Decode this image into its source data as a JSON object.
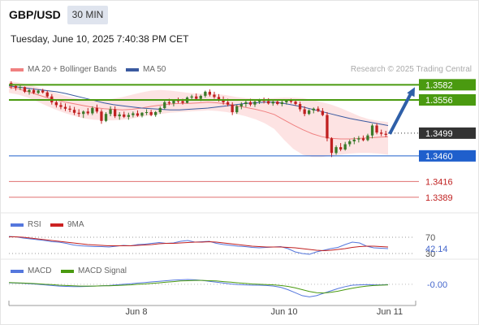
{
  "header": {
    "symbol": "GBP/USD",
    "timeframe": "30 MIN",
    "datetime": "Tuesday, June 10, 2025 7:40:38 PM CET",
    "credit": "Research © 2025 Trading Central"
  },
  "legends": {
    "ma20": "MA 20 + Bollinger Bands",
    "ma50": "MA 50",
    "rsi": "RSI",
    "rsi_ma": "9MA",
    "macd": "MACD",
    "macd_signal": "MACD Signal"
  },
  "colors": {
    "bull": "#3a7a2a",
    "bear": "#c02020",
    "ma20": "#f08080",
    "ma50": "#3a5aa0",
    "bands": "#fde0e0",
    "resistance": "#4a9a10",
    "support": "#1f5fcc",
    "target": "#e07070",
    "price": "#333333",
    "rsi": "#5577dd",
    "macd": "#5577dd",
    "signal": "#4a9a10"
  },
  "chart_data": [
    {
      "type": "candlestick",
      "ylim": [
        1.3365,
        1.3595
      ],
      "x_ticks": [
        "Jun 8",
        "Jun 10",
        "Jun 11"
      ],
      "candles": [
        [
          1.3585,
          1.3588,
          1.3575,
          1.358
        ],
        [
          1.358,
          1.3583,
          1.3572,
          1.3577
        ],
        [
          1.3577,
          1.3581,
          1.3573,
          1.3578
        ],
        [
          1.3578,
          1.3579,
          1.3568,
          1.357
        ],
        [
          1.357,
          1.3575,
          1.3565,
          1.3573
        ],
        [
          1.3573,
          1.3576,
          1.3566,
          1.3568
        ],
        [
          1.3568,
          1.3574,
          1.3566,
          1.3572
        ],
        [
          1.3572,
          1.3575,
          1.3567,
          1.3569
        ],
        [
          1.3569,
          1.3572,
          1.356,
          1.3562
        ],
        [
          1.3562,
          1.3566,
          1.3548,
          1.3552
        ],
        [
          1.3552,
          1.3556,
          1.3543,
          1.3547
        ],
        [
          1.3547,
          1.3552,
          1.354,
          1.3544
        ],
        [
          1.3544,
          1.355,
          1.3537,
          1.3541
        ],
        [
          1.3541,
          1.3546,
          1.3535,
          1.3539
        ],
        [
          1.3539,
          1.3544,
          1.353,
          1.3534
        ],
        [
          1.3534,
          1.354,
          1.3527,
          1.3532
        ],
        [
          1.3532,
          1.3538,
          1.3525,
          1.3536
        ],
        [
          1.3536,
          1.3542,
          1.353,
          1.3533
        ],
        [
          1.3533,
          1.3545,
          1.353,
          1.3542
        ],
        [
          1.3542,
          1.3548,
          1.3533,
          1.3536
        ],
        [
          1.3536,
          1.354,
          1.3515,
          1.352
        ],
        [
          1.352,
          1.3535,
          1.3518,
          1.3532
        ],
        [
          1.3532,
          1.3545,
          1.3528,
          1.354
        ],
        [
          1.354,
          1.3545,
          1.3525,
          1.3528
        ],
        [
          1.3528,
          1.3535,
          1.3522,
          1.3531
        ],
        [
          1.3531,
          1.3536,
          1.3525,
          1.3527
        ],
        [
          1.3527,
          1.3534,
          1.3522,
          1.353
        ],
        [
          1.353,
          1.3536,
          1.3526,
          1.3533
        ],
        [
          1.3533,
          1.3538,
          1.3527,
          1.3529
        ],
        [
          1.3529,
          1.3535,
          1.3526,
          1.3534
        ],
        [
          1.3534,
          1.354,
          1.353,
          1.3535
        ],
        [
          1.3535,
          1.3539,
          1.3528,
          1.353
        ],
        [
          1.353,
          1.3537,
          1.3527,
          1.3535
        ],
        [
          1.3535,
          1.3545,
          1.3532,
          1.3542
        ],
        [
          1.3542,
          1.3555,
          1.354,
          1.3552
        ],
        [
          1.3552,
          1.3558,
          1.3547,
          1.355
        ],
        [
          1.355,
          1.3557,
          1.3545,
          1.3555
        ],
        [
          1.3555,
          1.356,
          1.355,
          1.3554
        ],
        [
          1.3554,
          1.3558,
          1.3548,
          1.3551
        ],
        [
          1.3551,
          1.3562,
          1.355,
          1.356
        ],
        [
          1.356,
          1.3565,
          1.3555,
          1.3562
        ],
        [
          1.3562,
          1.3567,
          1.3555,
          1.3558
        ],
        [
          1.3558,
          1.3565,
          1.3554,
          1.3563
        ],
        [
          1.3563,
          1.3572,
          1.356,
          1.357
        ],
        [
          1.357,
          1.3574,
          1.3562,
          1.3565
        ],
        [
          1.3565,
          1.357,
          1.3558,
          1.3561
        ],
        [
          1.3561,
          1.3566,
          1.3553,
          1.3556
        ],
        [
          1.3556,
          1.3562,
          1.3548,
          1.3552
        ],
        [
          1.3552,
          1.3558,
          1.3545,
          1.3548
        ],
        [
          1.3548,
          1.3552,
          1.353,
          1.3535
        ],
        [
          1.3535,
          1.3548,
          1.3532,
          1.3545
        ],
        [
          1.3545,
          1.3552,
          1.354,
          1.3549
        ],
        [
          1.3549,
          1.3556,
          1.3544,
          1.3552
        ],
        [
          1.3552,
          1.3558,
          1.3545,
          1.3548
        ],
        [
          1.3548,
          1.3556,
          1.3544,
          1.3553
        ],
        [
          1.3553,
          1.3558,
          1.3549,
          1.3556
        ],
        [
          1.3556,
          1.356,
          1.355,
          1.3554
        ],
        [
          1.3554,
          1.3559,
          1.3548,
          1.355
        ],
        [
          1.355,
          1.3556,
          1.3546,
          1.3553
        ],
        [
          1.3553,
          1.3557,
          1.3547,
          1.3549
        ],
        [
          1.3549,
          1.3555,
          1.3545,
          1.3552
        ],
        [
          1.3552,
          1.3557,
          1.3548,
          1.3555
        ],
        [
          1.3555,
          1.3558,
          1.355,
          1.3553
        ],
        [
          1.3553,
          1.3556,
          1.3546,
          1.3549
        ],
        [
          1.3549,
          1.3553,
          1.3536,
          1.354
        ],
        [
          1.354,
          1.3545,
          1.3528,
          1.3532
        ],
        [
          1.3532,
          1.354,
          1.353,
          1.3538
        ],
        [
          1.3538,
          1.3543,
          1.3533,
          1.3541
        ],
        [
          1.3541,
          1.3545,
          1.3535,
          1.3537
        ],
        [
          1.3537,
          1.3542,
          1.3528,
          1.353
        ],
        [
          1.353,
          1.3535,
          1.3485,
          1.349
        ],
        [
          1.349,
          1.3492,
          1.3458,
          1.3465
        ],
        [
          1.3465,
          1.3478,
          1.3462,
          1.3475
        ],
        [
          1.3475,
          1.3482,
          1.3468,
          1.3471
        ],
        [
          1.3471,
          1.3484,
          1.3469,
          1.348
        ],
        [
          1.348,
          1.3488,
          1.3476,
          1.3485
        ],
        [
          1.3485,
          1.3492,
          1.348,
          1.3488
        ],
        [
          1.3488,
          1.3494,
          1.3483,
          1.349
        ],
        [
          1.349,
          1.3495,
          1.3485,
          1.3487
        ],
        [
          1.3487,
          1.3498,
          1.3485,
          1.3495
        ],
        [
          1.3495,
          1.3515,
          1.349,
          1.3512
        ],
        [
          1.3512,
          1.3516,
          1.3497,
          1.35
        ],
        [
          1.35,
          1.3505,
          1.3494,
          1.3498
        ],
        [
          1.3498,
          1.3503,
          1.3492,
          1.3496
        ]
      ],
      "ma20": [
        1.3578,
        1.3575,
        1.357,
        1.3565,
        1.356,
        1.3556,
        1.3552,
        1.3549,
        1.3546,
        1.3543,
        1.3541,
        1.354,
        1.3539,
        1.354,
        1.3542,
        1.3545,
        1.3547,
        1.3549,
        1.355,
        1.355,
        1.3551,
        1.3552,
        1.3551,
        1.3549,
        1.3546,
        1.3543,
        1.354,
        1.3536,
        1.3531,
        1.3522,
        1.3513,
        1.3505,
        1.3498,
        1.3493,
        1.349,
        1.3489,
        1.3489,
        1.349,
        1.3491,
        1.3492,
        1.3493
      ],
      "ma50": [
        1.358,
        1.3578,
        1.3576,
        1.3574,
        1.3572,
        1.357,
        1.3567,
        1.3563,
        1.3559,
        1.3555,
        1.3551,
        1.3548,
        1.3546,
        1.3544,
        1.3542,
        1.3541,
        1.354,
        1.3539,
        1.3539,
        1.354,
        1.3541,
        1.3542,
        1.3544,
        1.3546,
        1.3548,
        1.355,
        1.3551,
        1.3552,
        1.3552,
        1.355,
        1.3547,
        1.3544,
        1.354,
        1.3536,
        1.3532,
        1.3528,
        1.3524,
        1.3521,
        1.3518,
        1.3515,
        1.3512
      ],
      "bb_upper": [
        1.3588,
        1.3586,
        1.3582,
        1.3578,
        1.3573,
        1.3568,
        1.3563,
        1.3559,
        1.3556,
        1.3555,
        1.3556,
        1.3558,
        1.3561,
        1.3565,
        1.3569,
        1.3572,
        1.3573,
        1.3572,
        1.357,
        1.3568,
        1.3567,
        1.3567,
        1.3566,
        1.3564,
        1.3561,
        1.3559,
        1.3558,
        1.3558,
        1.3559,
        1.356,
        1.356,
        1.3559,
        1.3556,
        1.3552,
        1.3548,
        1.3542,
        1.3535,
        1.3528,
        1.3523,
        1.352,
        1.3518
      ],
      "bb_lower": [
        1.3568,
        1.3565,
        1.356,
        1.3553,
        1.3546,
        1.3539,
        1.3533,
        1.3528,
        1.3524,
        1.3522,
        1.3521,
        1.3521,
        1.3522,
        1.3524,
        1.3527,
        1.353,
        1.3532,
        1.3534,
        1.3535,
        1.3536,
        1.3537,
        1.3538,
        1.3537,
        1.3535,
        1.3532,
        1.3528,
        1.3523,
        1.3516,
        1.3506,
        1.3488,
        1.3472,
        1.3462,
        1.3458,
        1.3458,
        1.346,
        1.3462,
        1.3464,
        1.3465,
        1.3465,
        1.3464,
        1.3462
      ],
      "levels": {
        "resistance": [
          "1.3582",
          "1.3556"
        ],
        "current": "1.3499",
        "support": "1.3460",
        "targets": [
          "1.3416",
          "1.3389"
        ]
      }
    },
    {
      "type": "line",
      "name": "RSI",
      "ylim": [
        20,
        80
      ],
      "level_labels": [
        "70",
        "42.14",
        "30"
      ],
      "rsi": [
        72,
        71,
        68,
        66,
        64,
        62,
        59,
        58,
        55,
        51,
        49,
        48,
        47,
        47,
        46,
        48,
        50,
        49,
        52,
        53,
        55,
        57,
        55,
        56,
        60,
        62,
        58,
        59,
        60,
        55,
        52,
        50,
        48,
        47,
        45,
        44,
        45,
        46,
        47,
        42,
        34,
        30,
        28,
        34,
        38,
        42,
        45,
        52,
        58,
        56,
        48,
        44,
        43,
        42
      ],
      "rsi_ma": [
        71,
        71,
        70,
        68,
        66,
        64,
        62,
        60,
        58,
        56,
        54,
        52,
        51,
        50,
        49,
        49,
        49,
        49,
        50,
        51,
        52,
        54,
        55,
        55,
        56,
        57,
        58,
        58,
        59,
        58,
        56,
        54,
        52,
        50,
        48,
        47,
        46,
        46,
        46,
        45,
        44,
        42,
        40,
        38,
        37,
        38,
        40,
        42,
        45,
        47,
        48,
        48,
        47,
        46
      ]
    },
    {
      "type": "line",
      "name": "MACD",
      "ylim": [
        -0.006,
        0.0035
      ],
      "label": "-0.00",
      "macd": [
        0.0005,
        0.0004,
        0.0003,
        0.0002,
        0.0,
        -0.0002,
        -0.0004,
        -0.0006,
        -0.0007,
        -0.0008,
        -0.0008,
        -0.0007,
        -0.0006,
        -0.0005,
        -0.0004,
        -0.0002,
        0.0,
        0.0002,
        0.0004,
        0.0006,
        0.0008,
        0.001,
        0.0012,
        0.0014,
        0.0015,
        0.0016,
        0.0015,
        0.0013,
        0.001,
        0.0007,
        0.0004,
        0.0001,
        -0.0001,
        -0.0002,
        -0.0003,
        -0.0003,
        -0.0004,
        -0.0006,
        -0.001,
        -0.0018,
        -0.0028,
        -0.0038,
        -0.0042,
        -0.0038,
        -0.003,
        -0.0022,
        -0.0014,
        -0.0008,
        -0.0003,
        -0.0002,
        -0.0001,
        -0.0002,
        -0.0002,
        -0.0001
      ],
      "signal": [
        0.0006,
        0.0005,
        0.0004,
        0.0003,
        0.0002,
        0.0,
        -0.0001,
        -0.0003,
        -0.0004,
        -0.0005,
        -0.0006,
        -0.0006,
        -0.0006,
        -0.0005,
        -0.0005,
        -0.0004,
        -0.0003,
        -0.0002,
        0.0,
        0.0001,
        0.0003,
        0.0005,
        0.0007,
        0.0009,
        0.0011,
        0.0012,
        0.0013,
        0.0013,
        0.0012,
        0.0011,
        0.0009,
        0.0007,
        0.0005,
        0.0003,
        0.0001,
        0.0,
        -0.0001,
        -0.0002,
        -0.0004,
        -0.0007,
        -0.0012,
        -0.0018,
        -0.0024,
        -0.0028,
        -0.0029,
        -0.0027,
        -0.0023,
        -0.0018,
        -0.0013,
        -0.0009,
        -0.0006,
        -0.0004,
        -0.0003,
        -0.0002
      ]
    }
  ]
}
